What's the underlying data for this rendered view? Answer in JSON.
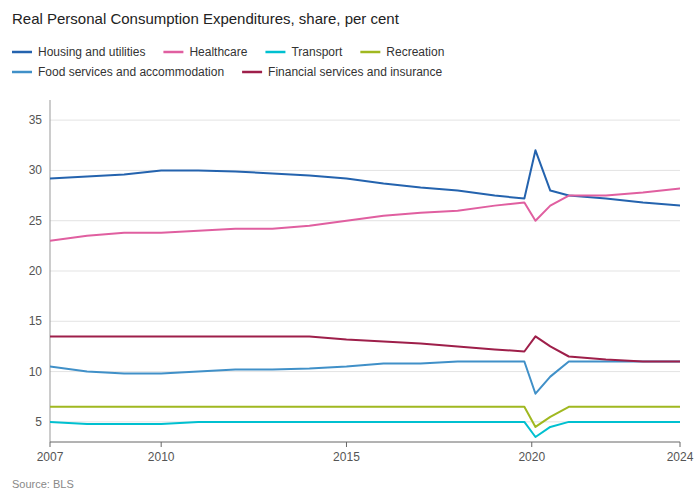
{
  "chart_data": {
    "type": "line",
    "title": "Real Personal Consumption Expenditures, share, per cent",
    "source": "Source: BLS",
    "x": [
      2007,
      2008,
      2009,
      2010,
      2011,
      2012,
      2013,
      2014,
      2015,
      2016,
      2017,
      2018,
      2019,
      2019.8,
      2020.1,
      2020.5,
      2021,
      2022,
      2023,
      2024
    ],
    "series": [
      {
        "name": "Housing and utilities",
        "color": "#2463ae",
        "values": [
          29.2,
          29.4,
          29.6,
          30.0,
          30.0,
          29.9,
          29.7,
          29.5,
          29.2,
          28.7,
          28.3,
          28.0,
          27.5,
          27.2,
          32.0,
          28.0,
          27.5,
          27.2,
          26.8,
          26.5
        ]
      },
      {
        "name": "Healthcare",
        "color": "#e05fa0",
        "values": [
          23.0,
          23.5,
          23.8,
          23.8,
          24.0,
          24.2,
          24.2,
          24.5,
          25.0,
          25.5,
          25.8,
          26.0,
          26.5,
          26.8,
          25.0,
          26.5,
          27.5,
          27.5,
          27.8,
          28.2
        ]
      },
      {
        "name": "Transport",
        "color": "#00c0d0",
        "values": [
          5.0,
          4.8,
          4.8,
          4.8,
          5.0,
          5.0,
          5.0,
          5.0,
          5.0,
          5.0,
          5.0,
          5.0,
          5.0,
          5.0,
          3.5,
          4.5,
          5.0,
          5.0,
          5.0,
          5.0
        ]
      },
      {
        "name": "Recreation",
        "color": "#a0b820",
        "values": [
          6.5,
          6.5,
          6.5,
          6.5,
          6.5,
          6.5,
          6.5,
          6.5,
          6.5,
          6.5,
          6.5,
          6.5,
          6.5,
          6.5,
          4.5,
          5.5,
          6.5,
          6.5,
          6.5,
          6.5
        ]
      },
      {
        "name": "Food services and accommodation",
        "color": "#4090c8",
        "values": [
          10.5,
          10.0,
          9.8,
          9.8,
          10.0,
          10.2,
          10.2,
          10.3,
          10.5,
          10.8,
          10.8,
          11.0,
          11.0,
          11.0,
          7.8,
          9.5,
          11.0,
          11.0,
          11.0,
          11.0
        ]
      },
      {
        "name": "Financial services and insurance",
        "color": "#9e1f4a",
        "values": [
          13.5,
          13.5,
          13.5,
          13.5,
          13.5,
          13.5,
          13.5,
          13.5,
          13.2,
          13.0,
          12.8,
          12.5,
          12.2,
          12.0,
          13.5,
          12.5,
          11.5,
          11.2,
          11.0,
          11.0
        ]
      }
    ],
    "xlim": [
      2007,
      2024
    ],
    "ylim": [
      3,
      37
    ],
    "xticks": [
      2007,
      2010,
      2015,
      2020,
      2024
    ],
    "yticks": [
      5,
      10,
      15,
      20,
      25,
      30,
      35
    ],
    "grid": true,
    "legend": "top"
  }
}
